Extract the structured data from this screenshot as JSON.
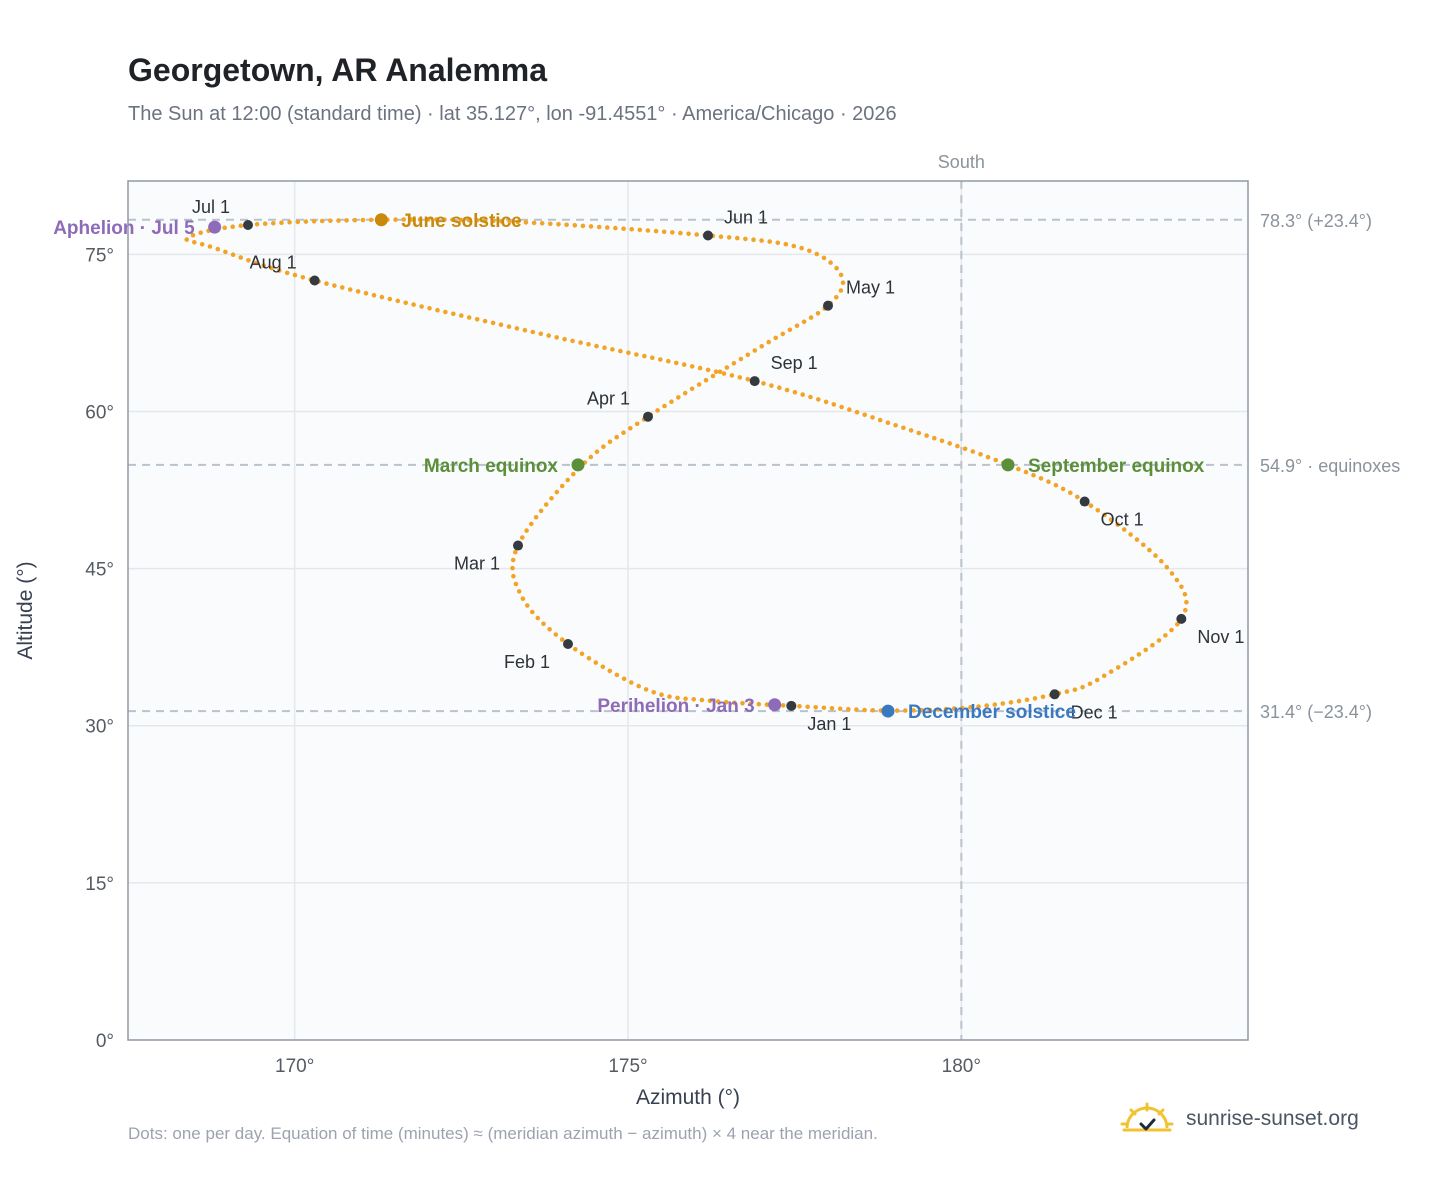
{
  "header": {
    "title": "Georgetown, AR Analemma",
    "subtitle": "The Sun at 12:00 (standard time) · lat 35.127°, lon -91.4551° · America/Chicago · 2026"
  },
  "footer": {
    "note": "Dots: one per day. Equation of time (minutes) ≈ (meridian azimuth − azimuth) × 4 near the meridian.",
    "brand": "sunrise-sunset.org"
  },
  "colors": {
    "path": "#f2a427",
    "month_marker": "#343a40",
    "solstice_june": "#c98a0b",
    "equinox": "#5b8f3a",
    "solstice_december": "#3a78c0",
    "aphelion_perihelion": "#8e6bb8",
    "reference_line": "#b9c3cc",
    "grid": "#e5e8eb",
    "plot_background": "#fafbfc",
    "frame": "#8f9aa6"
  },
  "chart_data": {
    "type": "scatter",
    "xlabel": "Azimuth (°)",
    "ylabel": "Altitude (°)",
    "xlim": [
      167.5,
      184.3
    ],
    "ylim": [
      0,
      82
    ],
    "xticks": [
      170,
      175,
      180
    ],
    "yticks": [
      0,
      15,
      30,
      45,
      60,
      75
    ],
    "x_tick_labels": [
      "170°",
      "175°",
      "180°"
    ],
    "y_tick_labels": [
      "0°",
      "15°",
      "30°",
      "45°",
      "60°",
      "75°"
    ],
    "grid": true,
    "series": [
      {
        "points_per_day": 1,
        "path_knots": [
          [
            177.45,
            31.9
          ],
          [
            176.2,
            32.4
          ],
          [
            175.3,
            33.4
          ],
          [
            174.1,
            37.8
          ],
          [
            173.4,
            42.4
          ],
          [
            173.35,
            47.2
          ],
          [
            174.3,
            54.8
          ],
          [
            175.3,
            59.5
          ],
          [
            177.0,
            66.2
          ],
          [
            178.0,
            70.1
          ],
          [
            178.2,
            73.0
          ],
          [
            177.6,
            75.6
          ],
          [
            176.2,
            76.8
          ],
          [
            173.3,
            78.1
          ],
          [
            171.3,
            78.3
          ],
          [
            169.3,
            77.8
          ],
          [
            168.4,
            76.6
          ],
          [
            168.8,
            75.6
          ],
          [
            170.3,
            72.5
          ],
          [
            173.7,
            67.4
          ],
          [
            176.9,
            62.9
          ],
          [
            179.1,
            58.5
          ],
          [
            180.7,
            54.9
          ],
          [
            181.85,
            51.4
          ],
          [
            183.1,
            45.0
          ],
          [
            183.3,
            40.2
          ],
          [
            182.1,
            34.6
          ],
          [
            181.4,
            33.0
          ],
          [
            180.2,
            31.8
          ],
          [
            178.9,
            31.45
          ],
          [
            177.45,
            31.9
          ]
        ]
      }
    ],
    "month_markers": [
      {
        "label": "Jan 1",
        "az": 177.45,
        "alt": 31.9
      },
      {
        "label": "Feb 1",
        "az": 174.1,
        "alt": 37.8
      },
      {
        "label": "Mar 1",
        "az": 173.35,
        "alt": 47.2
      },
      {
        "label": "Apr 1",
        "az": 175.3,
        "alt": 59.5
      },
      {
        "label": "May 1",
        "az": 178.0,
        "alt": 70.1
      },
      {
        "label": "Jun 1",
        "az": 176.2,
        "alt": 76.8
      },
      {
        "label": "Jul 1",
        "az": 169.3,
        "alt": 77.8
      },
      {
        "label": "Aug 1",
        "az": 170.3,
        "alt": 72.5
      },
      {
        "label": "Sep 1",
        "az": 176.9,
        "alt": 62.9
      },
      {
        "label": "Oct 1",
        "az": 181.85,
        "alt": 51.4
      },
      {
        "label": "Nov 1",
        "az": 183.3,
        "alt": 40.2
      },
      {
        "label": "Dec 1",
        "az": 181.4,
        "alt": 33.0
      }
    ],
    "events": [
      {
        "label": "June solstice",
        "az": 171.3,
        "alt": 78.3,
        "color_key": "solstice_june"
      },
      {
        "label": "March equinox",
        "az": 174.25,
        "alt": 54.9,
        "color_key": "equinox"
      },
      {
        "label": "September equinox",
        "az": 180.7,
        "alt": 54.9,
        "color_key": "equinox"
      },
      {
        "label": "December solstice",
        "az": 178.9,
        "alt": 31.4,
        "color_key": "solstice_december"
      },
      {
        "label": "Aphelion · Jul 5",
        "az": 168.8,
        "alt": 77.6,
        "color_key": "aphelion_perihelion"
      },
      {
        "label": "Perihelion · Jan 3",
        "az": 177.2,
        "alt": 32.0,
        "color_key": "aphelion_perihelion"
      }
    ],
    "reference_lines": [
      {
        "alt": 78.3,
        "label": "78.3° (+23.4°)"
      },
      {
        "alt": 54.9,
        "label": "54.9° · equinoxes"
      },
      {
        "alt": 31.4,
        "label": "31.4° (−23.4°)"
      }
    ],
    "meridian": {
      "az": 180,
      "label": "South"
    }
  }
}
